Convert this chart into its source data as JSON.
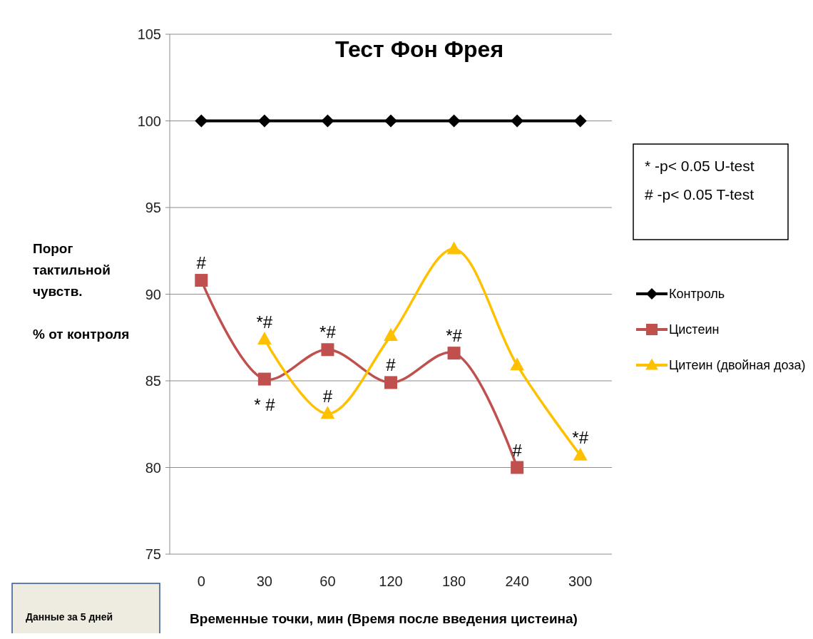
{
  "chart_data": {
    "type": "line",
    "title": "Тест Фон Фрея",
    "xlabel": "Временные точки, мин (Время после введения цистеина)",
    "ylabel": "Порог\nтактильной\nчувств.\n\n% от контроля",
    "categories": [
      "0",
      "30",
      "60",
      "120",
      "180",
      "240",
      "300"
    ],
    "series": [
      {
        "name": "Контроль",
        "color": "#000000",
        "marker": "diamond",
        "values": [
          100,
          100,
          100,
          100,
          100,
          100,
          100
        ]
      },
      {
        "name": "Цистеин",
        "color": "#c0504d",
        "marker": "square",
        "values": [
          90.8,
          85.1,
          86.8,
          84.9,
          86.6,
          80.0,
          null
        ]
      },
      {
        "name": "Цитеин (двойная доза)",
        "color": "#ffc000",
        "marker": "triangle",
        "values": [
          null,
          87.4,
          83.1,
          87.6,
          92.6,
          85.9,
          80.7
        ]
      }
    ],
    "ylim": [
      75,
      105
    ],
    "yticks": [
      75,
      80,
      85,
      90,
      95,
      100,
      105
    ],
    "grid": "y",
    "legend": "right",
    "annotations": [
      {
        "text": "#",
        "x": "0",
        "y": 90.8
      },
      {
        "text": "*#",
        "x": "30",
        "y": 87.4
      },
      {
        "text": "* #",
        "x": "30",
        "y": 85.1
      },
      {
        "text": "*#",
        "x": "60",
        "y": 86.8
      },
      {
        "text": "#",
        "x": "60",
        "y": 83.1
      },
      {
        "text": "#",
        "x": "120",
        "y": 84.9
      },
      {
        "text": "*#",
        "x": "180",
        "y": 86.6
      },
      {
        "text": "#",
        "x": "240",
        "y": 80.0
      },
      {
        "text": "*#",
        "x": "300",
        "y": 80.7
      },
      "* -p< 0.05 U-test",
      "# -p< 0.05 T-test",
      "Данные за 5 дней"
    ]
  }
}
